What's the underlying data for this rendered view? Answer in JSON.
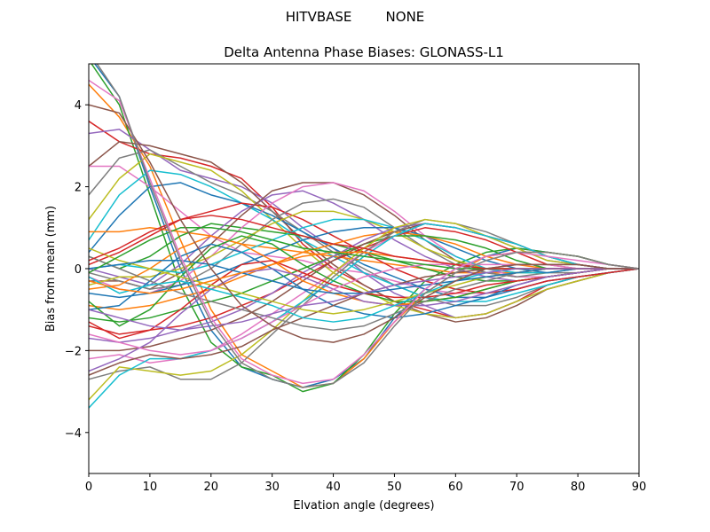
{
  "chart_data": {
    "type": "line",
    "suptitle": "HITVBASE        NONE",
    "title": "Delta Antenna Phase Biases: GLONASS-L1",
    "xlabel": "Elvation angle (degrees)",
    "ylabel": "Bias from mean (mm)",
    "xlim": [
      0,
      90
    ],
    "ylim": [
      -5,
      5
    ],
    "xticks": [
      0,
      10,
      20,
      30,
      40,
      50,
      60,
      70,
      80,
      90
    ],
    "yticks": [
      -4,
      -2,
      0,
      2,
      4
    ],
    "ytick_labels": [
      "−4",
      "−2",
      "0",
      "2",
      "4"
    ],
    "grid": false,
    "legend": "none",
    "x": [
      0,
      5,
      10,
      15,
      20,
      25,
      30,
      35,
      40,
      45,
      50,
      55,
      60,
      65,
      70,
      75,
      80,
      85,
      90
    ],
    "palette": [
      "#1f77b4",
      "#ff7f0e",
      "#2ca02c",
      "#d62728",
      "#9467bd",
      "#8c564b",
      "#e377c2",
      "#7f7f7f",
      "#bcbd22",
      "#17becf"
    ],
    "series": [
      {
        "values": [
          5.2,
          4.2,
          2.0,
          0.0,
          -1.5,
          -2.4,
          -2.7,
          -2.9,
          -2.7,
          -2.2,
          -1.2,
          -0.5,
          0.0,
          0.3,
          0.5,
          0.4,
          0.3,
          0.1,
          0
        ]
      },
      {
        "values": [
          4.5,
          3.7,
          2.5,
          0.7,
          -1.0,
          -2.1,
          -2.5,
          -2.9,
          -2.8,
          -2.2,
          -1.3,
          -0.6,
          -0.1,
          0.3,
          0.4,
          0.4,
          0.3,
          0.1,
          0
        ]
      },
      {
        "values": [
          5.1,
          4.0,
          1.8,
          -0.4,
          -1.8,
          -2.4,
          -2.6,
          -3.0,
          -2.8,
          -2.1,
          -1.1,
          -0.3,
          0.1,
          0.4,
          0.5,
          0.4,
          0.3,
          0.1,
          0
        ]
      },
      {
        "values": [
          3.6,
          3.1,
          2.8,
          2.7,
          2.5,
          2.2,
          1.5,
          0.6,
          0.0,
          -0.4,
          -0.8,
          -1.0,
          -1.2,
          -1.1,
          -0.8,
          -0.4,
          -0.2,
          -0.1,
          0
        ]
      },
      {
        "values": [
          3.3,
          3.4,
          2.9,
          2.4,
          2.2,
          2.0,
          1.6,
          1.0,
          0.5,
          -0.1,
          -0.6,
          -0.9,
          -1.2,
          -1.1,
          -0.8,
          -0.5,
          -0.3,
          -0.1,
          0
        ]
      },
      {
        "values": [
          2.5,
          3.1,
          3.0,
          2.8,
          2.6,
          2.1,
          1.4,
          0.7,
          0.1,
          -0.4,
          -0.8,
          -1.1,
          -1.3,
          -1.2,
          -0.9,
          -0.5,
          -0.3,
          -0.1,
          0
        ]
      },
      {
        "values": [
          2.5,
          2.5,
          2.0,
          1.4,
          0.8,
          0.4,
          0.3,
          0.2,
          0.0,
          -0.1,
          -0.3,
          -0.5,
          -0.6,
          -0.6,
          -0.5,
          -0.3,
          -0.2,
          -0.1,
          0
        ]
      },
      {
        "values": [
          1.8,
          2.7,
          2.9,
          2.5,
          2.1,
          1.8,
          1.4,
          0.9,
          0.4,
          0.0,
          -0.4,
          -0.7,
          -0.9,
          -0.9,
          -0.7,
          -0.4,
          -0.2,
          -0.1,
          0
        ]
      },
      {
        "values": [
          1.2,
          2.2,
          2.8,
          2.6,
          2.4,
          1.9,
          1.2,
          0.5,
          -0.1,
          -0.5,
          -0.9,
          -1.1,
          -1.2,
          -1.1,
          -0.8,
          -0.5,
          -0.3,
          -0.1,
          0
        ]
      },
      {
        "values": [
          0.7,
          1.8,
          2.4,
          2.3,
          2.0,
          1.6,
          1.2,
          0.7,
          0.3,
          -0.1,
          -0.4,
          -0.7,
          -0.8,
          -0.8,
          -0.6,
          -0.4,
          -0.2,
          -0.1,
          0
        ]
      },
      {
        "values": [
          0.4,
          1.3,
          2.0,
          2.1,
          1.8,
          1.6,
          1.3,
          0.9,
          0.5,
          0.1,
          -0.2,
          -0.5,
          -0.7,
          -0.7,
          -0.5,
          -0.3,
          -0.2,
          -0.1,
          0
        ]
      },
      {
        "values": [
          0.9,
          0.9,
          1.0,
          0.9,
          0.8,
          0.6,
          0.5,
          0.4,
          0.3,
          0.2,
          0.1,
          0.0,
          -0.1,
          -0.1,
          -0.1,
          0.0,
          0.0,
          0.0,
          0
        ]
      },
      {
        "values": [
          0.3,
          0.0,
          0.3,
          0.8,
          1.1,
          1.0,
          0.9,
          0.8,
          0.6,
          0.4,
          0.2,
          0.0,
          -0.2,
          -0.3,
          -0.3,
          -0.2,
          -0.1,
          0.0,
          0
        ]
      },
      {
        "values": [
          0.1,
          0.4,
          0.8,
          1.2,
          1.4,
          1.6,
          1.5,
          1.2,
          0.8,
          0.4,
          0.0,
          -0.3,
          -0.5,
          -0.6,
          -0.5,
          -0.3,
          -0.2,
          -0.1,
          0
        ]
      },
      {
        "values": [
          0.0,
          -0.2,
          -0.4,
          0.1,
          0.8,
          1.4,
          1.8,
          1.9,
          1.6,
          1.2,
          0.7,
          0.3,
          0.0,
          -0.2,
          -0.3,
          -0.2,
          -0.1,
          0.0,
          0
        ]
      },
      {
        "values": [
          -0.3,
          -0.3,
          -0.5,
          -0.1,
          0.6,
          1.3,
          1.9,
          2.1,
          2.1,
          1.8,
          1.3,
          0.7,
          0.2,
          -0.1,
          -0.2,
          -0.2,
          -0.1,
          0.0,
          0
        ]
      },
      {
        "values": [
          -0.2,
          -0.5,
          -0.6,
          -0.3,
          0.3,
          1.0,
          1.6,
          2.0,
          2.1,
          1.9,
          1.4,
          0.8,
          0.3,
          0.0,
          -0.2,
          -0.2,
          -0.1,
          0.0,
          0
        ]
      },
      {
        "values": [
          -0.1,
          -0.3,
          -0.5,
          -0.4,
          0.0,
          0.6,
          1.2,
          1.6,
          1.7,
          1.5,
          1.0,
          0.5,
          0.1,
          -0.1,
          -0.2,
          -0.1,
          -0.1,
          0.0,
          0
        ]
      },
      {
        "values": [
          -0.4,
          -0.2,
          -0.2,
          0.0,
          0.3,
          0.7,
          1.1,
          1.4,
          1.4,
          1.2,
          0.9,
          0.5,
          0.2,
          0.0,
          -0.1,
          -0.1,
          0.0,
          0.0,
          0
        ]
      },
      {
        "values": [
          0.0,
          0.1,
          0.0,
          -0.1,
          0.1,
          0.4,
          0.7,
          1.0,
          1.2,
          1.2,
          1.0,
          0.7,
          0.3,
          0.0,
          -0.1,
          -0.1,
          0.0,
          0.0,
          0
        ]
      },
      {
        "values": [
          -0.6,
          -0.7,
          -0.6,
          -0.4,
          -0.2,
          0.1,
          0.4,
          0.7,
          0.9,
          1.0,
          1.0,
          0.8,
          0.5,
          0.2,
          0.0,
          -0.1,
          0.0,
          0.0,
          0
        ]
      },
      {
        "values": [
          -0.9,
          -1.0,
          -0.9,
          -0.7,
          -0.5,
          -0.2,
          0.1,
          0.4,
          0.6,
          0.8,
          0.9,
          0.8,
          0.6,
          0.3,
          0.1,
          0.0,
          0.0,
          0.0,
          0
        ]
      },
      {
        "values": [
          -1.2,
          -1.3,
          -1.2,
          -1.0,
          -0.8,
          -0.6,
          -0.3,
          0.0,
          0.3,
          0.6,
          0.8,
          0.8,
          0.7,
          0.5,
          0.2,
          0.0,
          0.0,
          0.0,
          0
        ]
      },
      {
        "values": [
          -1.4,
          -1.6,
          -1.5,
          -1.4,
          -1.2,
          -0.9,
          -0.6,
          -0.2,
          0.2,
          0.5,
          0.8,
          1.0,
          0.9,
          0.7,
          0.4,
          0.1,
          0.0,
          0.0,
          0
        ]
      },
      {
        "values": [
          -1.7,
          -1.8,
          -1.7,
          -1.5,
          -1.3,
          -1.0,
          -0.6,
          -0.1,
          0.3,
          0.7,
          1.0,
          1.1,
          1.0,
          0.8,
          0.5,
          0.2,
          0.1,
          0.0,
          0
        ]
      },
      {
        "values": [
          -2.0,
          -2.0,
          -1.9,
          -1.7,
          -1.5,
          -1.2,
          -0.8,
          -0.3,
          0.2,
          0.6,
          0.9,
          1.1,
          1.0,
          0.8,
          0.6,
          0.3,
          0.1,
          0.0,
          0
        ]
      },
      {
        "values": [
          -2.2,
          -2.1,
          -2.3,
          -2.2,
          -2.0,
          -1.6,
          -1.1,
          -0.6,
          -0.1,
          0.4,
          0.8,
          1.1,
          1.0,
          0.8,
          0.6,
          0.3,
          0.1,
          0.0,
          0
        ]
      },
      {
        "values": [
          -2.7,
          -2.5,
          -2.4,
          -2.7,
          -2.7,
          -2.3,
          -1.6,
          -0.9,
          -0.2,
          0.4,
          0.9,
          1.2,
          1.1,
          0.9,
          0.6,
          0.3,
          0.1,
          0.0,
          0
        ]
      },
      {
        "values": [
          -3.2,
          -2.4,
          -2.5,
          -2.6,
          -2.5,
          -2.1,
          -1.5,
          -0.8,
          -0.1,
          0.5,
          1.0,
          1.2,
          1.1,
          0.8,
          0.5,
          0.2,
          0.1,
          0.0,
          0
        ]
      },
      {
        "values": [
          -3.4,
          -2.6,
          -2.2,
          -2.2,
          -2.0,
          -1.7,
          -1.3,
          -0.8,
          -0.3,
          0.3,
          0.8,
          1.1,
          1.0,
          0.8,
          0.6,
          0.3,
          0.1,
          0.0,
          0
        ]
      },
      {
        "values": [
          -1.0,
          -0.9,
          -0.3,
          0.3,
          0.6,
          0.4,
          0.0,
          -0.5,
          -0.9,
          -1.1,
          -1.2,
          -1.1,
          -0.9,
          -0.7,
          -0.4,
          -0.2,
          -0.1,
          0.0,
          0
        ]
      },
      {
        "values": [
          -0.5,
          -0.4,
          0.0,
          0.5,
          0.8,
          0.6,
          0.2,
          -0.3,
          -0.6,
          -0.8,
          -0.9,
          -0.8,
          -0.7,
          -0.5,
          -0.3,
          -0.2,
          -0.1,
          0.0,
          0
        ]
      },
      {
        "values": [
          -0.8,
          -1.4,
          -1.0,
          -0.2,
          0.5,
          0.8,
          0.6,
          0.1,
          -0.3,
          -0.6,
          -0.8,
          -0.8,
          -0.7,
          -0.5,
          -0.3,
          -0.2,
          -0.1,
          0.0,
          0
        ]
      },
      {
        "values": [
          -1.3,
          -1.7,
          -1.5,
          -1.0,
          -0.4,
          0.1,
          0.2,
          -0.1,
          -0.4,
          -0.6,
          -0.7,
          -0.7,
          -0.6,
          -0.4,
          -0.3,
          -0.2,
          -0.1,
          0.0,
          0
        ]
      },
      {
        "values": [
          -2.5,
          -2.2,
          -1.8,
          -1.1,
          -0.5,
          -0.1,
          0.0,
          -0.2,
          -0.5,
          -0.8,
          -0.9,
          -0.9,
          -0.8,
          -0.6,
          -0.4,
          -0.2,
          -0.1,
          0.0,
          0
        ]
      },
      {
        "values": [
          -2.6,
          -2.3,
          -2.1,
          -2.2,
          -2.1,
          -1.9,
          -1.5,
          -1.2,
          -0.9,
          -0.6,
          -0.4,
          -0.2,
          -0.1,
          0.0,
          0.1,
          0.1,
          0.1,
          0.0,
          0
        ]
      },
      {
        "values": [
          -1.6,
          -1.8,
          -2.0,
          -2.1,
          -2.0,
          -1.7,
          -1.3,
          -0.9,
          -0.5,
          -0.2,
          0.0,
          0.1,
          0.1,
          0.1,
          0.1,
          0.1,
          0.0,
          0.0,
          0
        ]
      },
      {
        "values": [
          0.3,
          0.0,
          -0.3,
          -0.6,
          -0.8,
          -1.0,
          -1.2,
          -1.4,
          -1.5,
          -1.4,
          -1.1,
          -0.8,
          -0.5,
          -0.3,
          -0.1,
          0.0,
          0.0,
          0.0,
          0
        ]
      },
      {
        "values": [
          0.5,
          0.2,
          0.0,
          -0.2,
          -0.4,
          -0.6,
          -0.8,
          -1.0,
          -1.1,
          -1.0,
          -0.8,
          -0.6,
          -0.4,
          -0.2,
          -0.1,
          0.0,
          0.0,
          0.0,
          0
        ]
      },
      {
        "values": [
          -0.2,
          -0.6,
          -0.4,
          -0.3,
          -0.5,
          -0.7,
          -0.9,
          -1.2,
          -1.3,
          -1.2,
          -0.9,
          -0.6,
          -0.3,
          -0.1,
          0.0,
          0.0,
          0.0,
          0.0,
          0
        ]
      },
      {
        "values": [
          0.0,
          0.1,
          0.2,
          0.2,
          0.1,
          -0.1,
          -0.3,
          -0.5,
          -0.6,
          -0.6,
          -0.5,
          -0.4,
          -0.3,
          -0.2,
          -0.1,
          0.0,
          0.0,
          0.0,
          0
        ]
      },
      {
        "values": [
          -0.3,
          -0.5,
          -0.6,
          -0.5,
          -0.3,
          -0.1,
          0.1,
          0.3,
          0.4,
          0.4,
          0.3,
          0.2,
          0.1,
          0.0,
          0.0,
          0.0,
          0.0,
          0.0,
          0
        ]
      },
      {
        "values": [
          -0.1,
          0.3,
          0.7,
          1.0,
          1.0,
          0.9,
          0.7,
          0.5,
          0.4,
          0.3,
          0.2,
          0.1,
          0.0,
          0.0,
          0.0,
          0.0,
          0.0,
          0.0,
          0
        ]
      },
      {
        "values": [
          0.2,
          0.5,
          0.9,
          1.2,
          1.3,
          1.2,
          1.0,
          0.8,
          0.6,
          0.5,
          0.3,
          0.2,
          0.1,
          0.0,
          0.0,
          0.0,
          0.0,
          0.0,
          0
        ]
      },
      {
        "values": [
          -1.0,
          -1.2,
          -1.4,
          -1.5,
          -1.4,
          -1.3,
          -1.1,
          -0.9,
          -0.8,
          -0.6,
          -0.4,
          -0.3,
          -0.2,
          -0.1,
          0.0,
          0.0,
          0.0,
          0.0,
          0
        ]
      },
      {
        "values": [
          4.0,
          3.8,
          2.6,
          1.2,
          0.0,
          -0.9,
          -1.4,
          -1.7,
          -1.8,
          -1.6,
          -1.2,
          -0.7,
          -0.3,
          0.0,
          0.1,
          0.1,
          0.1,
          0.0,
          0
        ]
      },
      {
        "values": [
          4.6,
          4.1,
          2.2,
          0.3,
          -1.2,
          -2.2,
          -2.6,
          -2.8,
          -2.7,
          -2.1,
          -1.3,
          -0.5,
          0.0,
          0.3,
          0.4,
          0.3,
          0.2,
          0.1,
          0
        ]
      },
      {
        "values": [
          5.3,
          4.2,
          2.1,
          0.2,
          -1.3,
          -2.3,
          -2.7,
          -2.9,
          -2.8,
          -2.3,
          -1.4,
          -0.6,
          -0.1,
          0.2,
          0.4,
          0.4,
          0.3,
          0.1,
          0
        ]
      }
    ]
  }
}
